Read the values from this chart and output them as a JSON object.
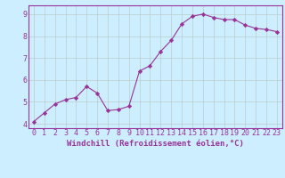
{
  "x": [
    0,
    1,
    2,
    3,
    4,
    5,
    6,
    7,
    8,
    9,
    10,
    11,
    12,
    13,
    14,
    15,
    16,
    17,
    18,
    19,
    20,
    21,
    22,
    23
  ],
  "y": [
    4.1,
    4.5,
    4.9,
    5.1,
    5.2,
    5.7,
    5.4,
    4.6,
    4.65,
    4.8,
    6.4,
    6.65,
    7.3,
    7.8,
    8.55,
    8.9,
    9.0,
    8.85,
    8.75,
    8.75,
    8.5,
    8.35,
    8.3,
    8.2
  ],
  "line_color": "#993399",
  "marker": "D",
  "marker_size": 2.2,
  "bg_color": "#cceeff",
  "grid_color": "#bbcccc",
  "xlabel": "Windchill (Refroidissement éolien,°C)",
  "xlim": [
    -0.5,
    23.5
  ],
  "ylim": [
    3.8,
    9.4
  ],
  "yticks": [
    4,
    5,
    6,
    7,
    8,
    9
  ],
  "xticks": [
    0,
    1,
    2,
    3,
    4,
    5,
    6,
    7,
    8,
    9,
    10,
    11,
    12,
    13,
    14,
    15,
    16,
    17,
    18,
    19,
    20,
    21,
    22,
    23
  ],
  "label_fontsize": 6.5,
  "tick_fontsize": 6.0
}
